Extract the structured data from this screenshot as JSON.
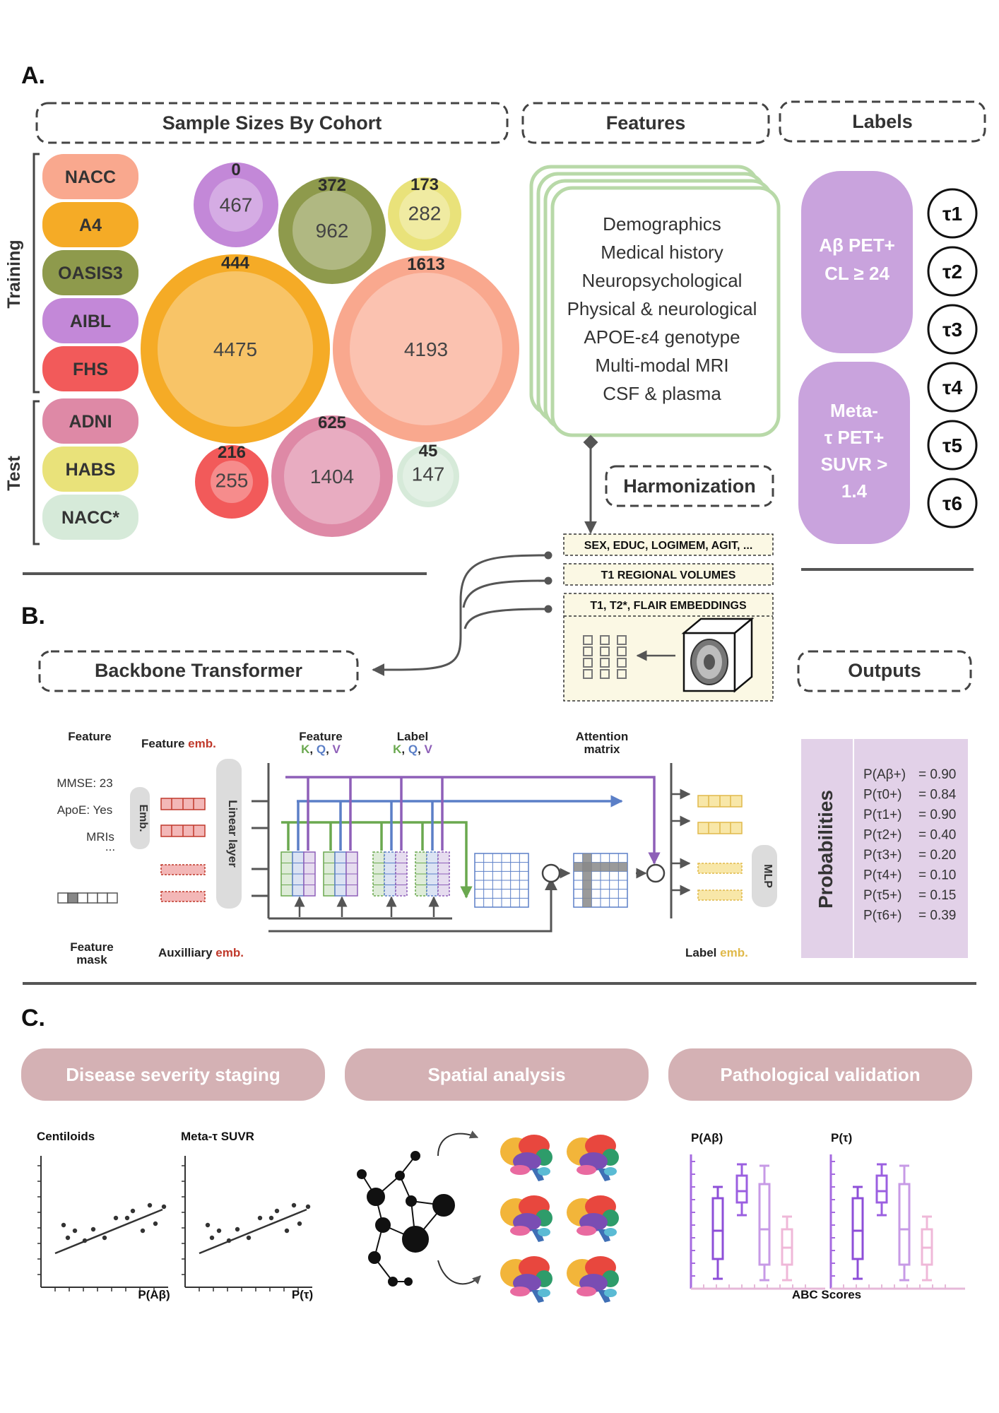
{
  "panels": {
    "a": "A.",
    "b": "B.",
    "c": "C."
  },
  "headers": {
    "sample_sizes": "Sample Sizes By Cohort",
    "features": "Features",
    "labels": "Labels",
    "backbone": "Backbone Transformer",
    "outputs": "Outputs",
    "harmonization": "Harmonization"
  },
  "groups": {
    "training": "Training",
    "test": "Test"
  },
  "cohorts": [
    {
      "name": "NACC",
      "color": "#f9a88e",
      "split": "training"
    },
    {
      "name": "A4",
      "color": "#f5ab26",
      "split": "training"
    },
    {
      "name": "OASIS3",
      "color": "#8e9a4c",
      "split": "training"
    },
    {
      "name": "AIBL",
      "color": "#c388d8",
      "split": "training"
    },
    {
      "name": "FHS",
      "color": "#f25a5a",
      "split": "training"
    },
    {
      "name": "ADNI",
      "color": "#de89a6",
      "split": "test"
    },
    {
      "name": "HABS",
      "color": "#e9e27a",
      "split": "test"
    },
    {
      "name": "NACC*",
      "color": "#d6ead9",
      "split": "test"
    }
  ],
  "bubbles": [
    {
      "cohort": "AIBL",
      "inner": "467",
      "outer": "0"
    },
    {
      "cohort": "OASIS3",
      "inner": "962",
      "outer": "372"
    },
    {
      "cohort": "HABS",
      "inner": "282",
      "outer": "173"
    },
    {
      "cohort": "A4",
      "inner": "4475",
      "outer": "444"
    },
    {
      "cohort": "NACC",
      "inner": "4193",
      "outer": "1613"
    },
    {
      "cohort": "FHS",
      "inner": "255",
      "outer": "216"
    },
    {
      "cohort": "ADNI",
      "inner": "1404",
      "outer": "625"
    },
    {
      "cohort": "NACC*",
      "inner": "147",
      "outer": "45"
    }
  ],
  "features": [
    "Demographics",
    "Medical history",
    "Neuropsychological",
    "Physical & neurological",
    "APOE-ε4 genotype",
    "Multi-modal MRI",
    "CSF & plasma"
  ],
  "feature_boxes": [
    "SEX, EDUC, LOGIMEM, AGIT, ...",
    "T1 REGIONAL VOLUMES",
    "T1, T2*, FLAIR EMBEDDINGS"
  ],
  "labels": {
    "abeta": [
      "Aβ PET+",
      "CL ≥ 24"
    ],
    "tau": [
      "Meta-",
      "τ PET+",
      "SUVR >",
      "1.4"
    ],
    "stages": [
      "τ1",
      "τ2",
      "τ3",
      "τ4",
      "τ5",
      "τ6"
    ]
  },
  "transformer": {
    "feature": "Feature",
    "feature_emb_prefix": "Feature ",
    "feature_emb_suffix": "emb.",
    "feature_kqv": "Feature",
    "label_kqv": "Label",
    "k": "K",
    "q": "Q",
    "v": "V",
    "comma": ",",
    "attention": [
      "Attention",
      "matrix"
    ],
    "inputs": [
      "MMSE: 23",
      "ApoE: Yes",
      "MRIs",
      "..."
    ],
    "emb": "Emb.",
    "linear": "Linear layer",
    "feature_mask": [
      "Feature",
      "mask"
    ],
    "aux_prefix": "Auxilliary ",
    "aux_suffix": "emb.",
    "mlp": "MLP",
    "label_emb_prefix": "Label ",
    "label_emb_suffix": "emb."
  },
  "probabilities": {
    "title": "Probabilities",
    "rows": [
      [
        "P(Aβ+)",
        "= 0.90"
      ],
      [
        "P(τ0+)",
        "= 0.84"
      ],
      [
        "P(τ1+)",
        "= 0.90"
      ],
      [
        "P(τ2+)",
        "= 0.40"
      ],
      [
        "P(τ3+)",
        "= 0.20"
      ],
      [
        "P(τ4+)",
        "= 0.10"
      ],
      [
        "P(τ5+)",
        "= 0.15"
      ],
      [
        "P(τ6+)",
        "= 0.39"
      ]
    ]
  },
  "panel_c": {
    "pills": [
      "Disease severity staging",
      "Spatial analysis",
      "Pathological validation"
    ],
    "plot1_title": "Centiloids",
    "plot1_x": "P(Aβ)",
    "plot2_title": "Meta-τ SUVR",
    "plot2_x": "P(τ)",
    "box1_title": "P(Aβ)",
    "box2_title": "P(τ)",
    "box_x": "ABC Scores"
  },
  "colors": {
    "k": "#6aa84f",
    "q": "#5b7fc7",
    "v": "#8e5fb8",
    "red": "#c0392b",
    "yellow": "#e0b94a",
    "pill": "#d4b1b4",
    "label_purple": "#c9a3dd",
    "prob_bg": "#e2d1e8"
  }
}
